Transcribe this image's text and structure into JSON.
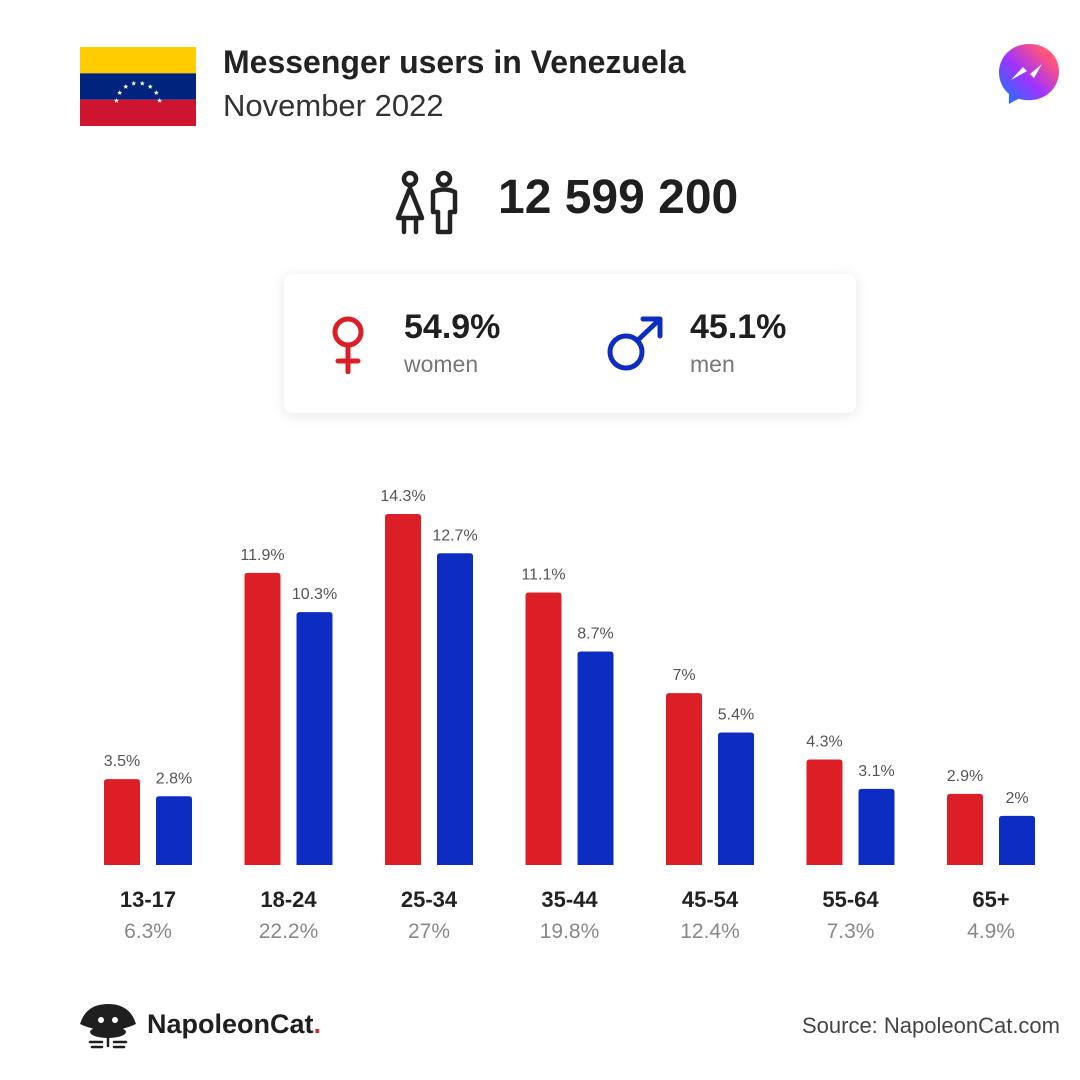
{
  "header": {
    "title": "Messenger users in Venezuela",
    "subtitle": "November 2022",
    "flag_icon": "venezuela-flag-icon",
    "app_icon": "messenger-logo-icon"
  },
  "total": {
    "value": "12 599 200",
    "icon": "people-icon"
  },
  "gender": {
    "women": {
      "percent": "54.9%",
      "label": "women",
      "icon": "female-symbol-icon",
      "color": "#dc1f26"
    },
    "men": {
      "percent": "45.1%",
      "label": "men",
      "icon": "male-symbol-icon",
      "color": "#0d2cc2"
    }
  },
  "chart_data": {
    "type": "bar",
    "categories": [
      "13-17",
      "18-24",
      "25-34",
      "35-44",
      "45-54",
      "55-64",
      "65+"
    ],
    "category_totals": [
      "6.3%",
      "22.2%",
      "27%",
      "19.8%",
      "12.4%",
      "7.3%",
      "4.9%"
    ],
    "series": [
      {
        "name": "women",
        "values": [
          3.5,
          11.9,
          14.3,
          11.1,
          7,
          4.3,
          2.9
        ],
        "labels": [
          "3.5%",
          "11.9%",
          "14.3%",
          "11.1%",
          "7%",
          "4.3%",
          "2.9%"
        ],
        "color": "#dc1f26"
      },
      {
        "name": "men",
        "values": [
          2.8,
          10.3,
          12.7,
          8.7,
          5.4,
          3.1,
          2
        ],
        "labels": [
          "2.8%",
          "10.3%",
          "12.7%",
          "8.7%",
          "5.4%",
          "3.1%",
          "2%"
        ],
        "color": "#0d2cc2"
      }
    ],
    "ylim": [
      0,
      14.3
    ],
    "grid": false
  },
  "footer": {
    "brand_name": "NapoleonCat",
    "brand_dot": ".",
    "brand_icon": "napoleoncat-logo-icon",
    "source": "Source: NapoleonCat.com"
  }
}
